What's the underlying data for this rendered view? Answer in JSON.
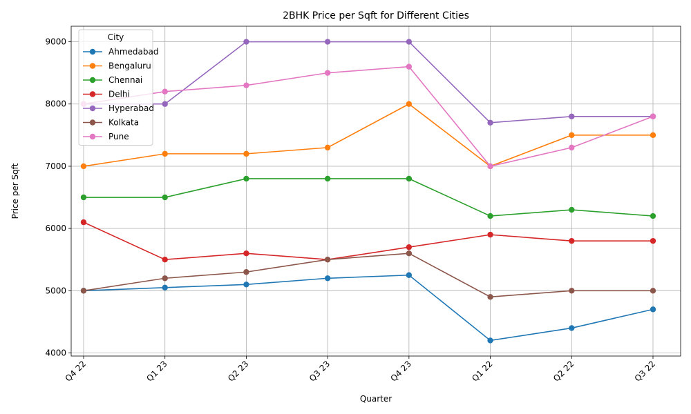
{
  "chart_data": {
    "type": "line",
    "title": "2BHK Price per Sqft for Different Cities",
    "xlabel": "Quarter",
    "ylabel": "Price per Sqft",
    "categories": [
      "Q4 22",
      "Q1 23",
      "Q2 23",
      "Q3 23",
      "Q4 23",
      "Q1 22",
      "Q2 22",
      "Q3 22"
    ],
    "ylim": [
      3950,
      9250
    ],
    "yticks": [
      4000,
      5000,
      6000,
      7000,
      8000,
      9000
    ],
    "grid": true,
    "legend": {
      "title": "City",
      "placement": "top-left"
    },
    "series": [
      {
        "name": "Ahmedabad",
        "color": "#1f77b4",
        "values": [
          5000,
          5050,
          5100,
          5200,
          5250,
          4200,
          4400,
          4700
        ]
      },
      {
        "name": "Bengaluru",
        "color": "#ff7f0e",
        "values": [
          7000,
          7200,
          7200,
          7300,
          8000,
          7000,
          7500,
          7500
        ]
      },
      {
        "name": "Chennai",
        "color": "#2ca02c",
        "values": [
          6500,
          6500,
          6800,
          6800,
          6800,
          6200,
          6300,
          6200
        ]
      },
      {
        "name": "Delhi",
        "color": "#d62728",
        "values": [
          6100,
          5500,
          5600,
          5500,
          5700,
          5900,
          5800,
          5800
        ]
      },
      {
        "name": "Hyperabad",
        "color": "#9467bd",
        "values": [
          8000,
          8000,
          9000,
          9000,
          9000,
          7700,
          7800,
          7800
        ]
      },
      {
        "name": "Kolkata",
        "color": "#8c564b",
        "values": [
          5000,
          5200,
          5300,
          5500,
          5600,
          4900,
          5000,
          5000
        ]
      },
      {
        "name": "Pune",
        "color": "#e377c2",
        "values": [
          8000,
          8200,
          8300,
          8500,
          8600,
          7000,
          7300,
          7800
        ]
      }
    ]
  }
}
